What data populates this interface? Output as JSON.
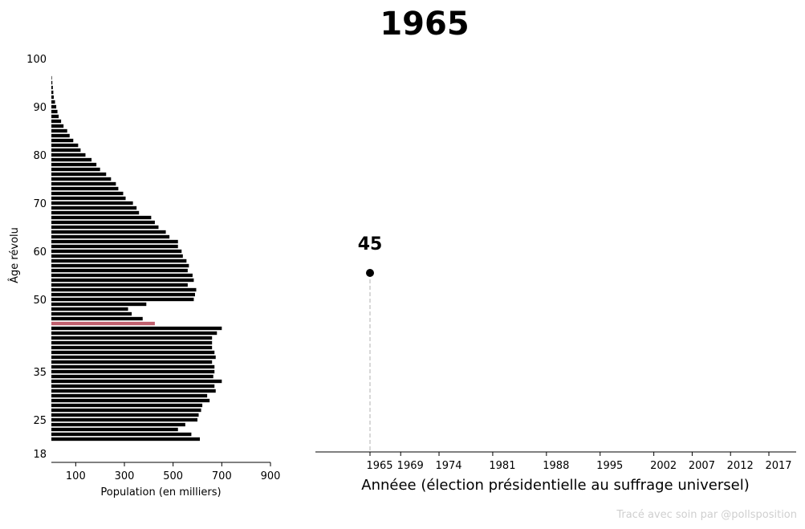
{
  "title": "1965",
  "credit": "Tracé avec soin par @pollsposition",
  "chart_data": [
    {
      "type": "bar",
      "orientation": "horizontal",
      "xlabel": "Population (en milliers)",
      "ylabel": "Âge révolu",
      "xticks": [
        100,
        300,
        500,
        700,
        900
      ],
      "yticks": [
        18,
        25,
        35,
        50,
        60,
        70,
        80,
        90,
        100
      ],
      "xlim": [
        0,
        900
      ],
      "ylim": [
        18,
        100
      ],
      "bar_color": "#000000",
      "highlight_color": "#c0606e",
      "highlight_age": 45,
      "ages": [
        21,
        22,
        23,
        24,
        25,
        26,
        27,
        28,
        29,
        30,
        31,
        32,
        33,
        34,
        35,
        36,
        37,
        38,
        39,
        40,
        41,
        42,
        43,
        44,
        45,
        46,
        47,
        48,
        49,
        50,
        51,
        52,
        53,
        54,
        55,
        56,
        57,
        58,
        59,
        60,
        61,
        62,
        63,
        64,
        65,
        66,
        67,
        68,
        69,
        70,
        71,
        72,
        73,
        74,
        75,
        76,
        77,
        78,
        79,
        80,
        81,
        82,
        83,
        84,
        85,
        86,
        87,
        88,
        89,
        90,
        91,
        92,
        93,
        94,
        95,
        96
      ],
      "values": [
        610,
        575,
        520,
        550,
        600,
        605,
        615,
        620,
        650,
        640,
        675,
        670,
        700,
        665,
        670,
        670,
        660,
        675,
        670,
        660,
        660,
        660,
        680,
        700,
        425,
        375,
        330,
        315,
        390,
        585,
        590,
        595,
        560,
        585,
        580,
        560,
        565,
        555,
        540,
        535,
        520,
        520,
        485,
        470,
        440,
        425,
        410,
        360,
        350,
        335,
        305,
        295,
        275,
        265,
        245,
        225,
        200,
        185,
        165,
        140,
        120,
        110,
        90,
        75,
        65,
        50,
        40,
        30,
        25,
        20,
        15,
        10,
        8,
        6,
        4,
        2
      ]
    },
    {
      "type": "scatter",
      "xlabel": "Annéee (élection présidentielle au suffrage universel)",
      "xticks": [
        1965,
        1969,
        1974,
        1981,
        1988,
        1995,
        2002,
        2007,
        2012,
        2017
      ],
      "xlim": [
        1958,
        2019
      ],
      "color": "#000000",
      "dropline_color": "#cccccc",
      "points": [
        {
          "x": 1965,
          "y": 45,
          "label": "45"
        }
      ]
    }
  ]
}
